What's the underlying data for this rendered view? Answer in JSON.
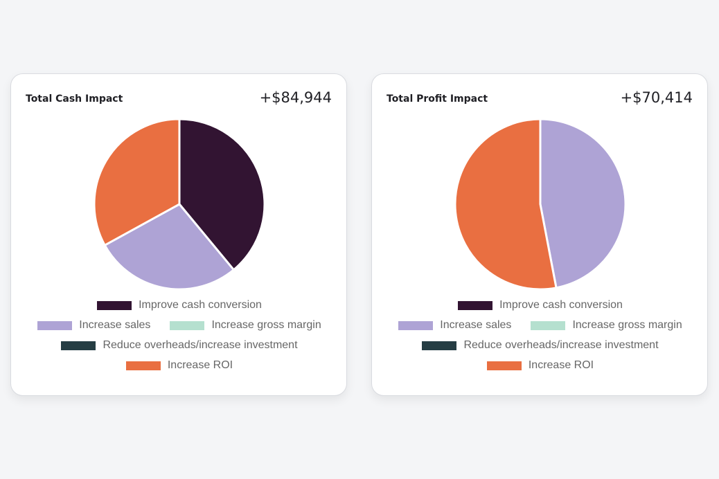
{
  "chart_data": [
    {
      "type": "pie",
      "title": "Total Cash Impact",
      "value_label": "+$84,944",
      "categories": [
        "Improve cash conversion",
        "Increase sales",
        "Increase gross margin",
        "Reduce overheads/increase investment",
        "Increase ROI"
      ],
      "values": [
        0.39,
        0.28,
        0,
        0,
        0.33
      ],
      "colors": [
        "#321432",
        "#aea3d5",
        "#b5e0cf",
        "#253d43",
        "#e96f41"
      ],
      "legend_position": "bottom"
    },
    {
      "type": "pie",
      "title": "Total Profit Impact",
      "value_label": "+$70,414",
      "categories": [
        "Improve cash conversion",
        "Increase sales",
        "Increase gross margin",
        "Reduce overheads/increase investment",
        "Increase ROI"
      ],
      "values": [
        0,
        0.47,
        0,
        0,
        0.53
      ],
      "colors": [
        "#321432",
        "#aea3d5",
        "#b5e0cf",
        "#253d43",
        "#e96f41"
      ],
      "legend_position": "bottom"
    }
  ]
}
